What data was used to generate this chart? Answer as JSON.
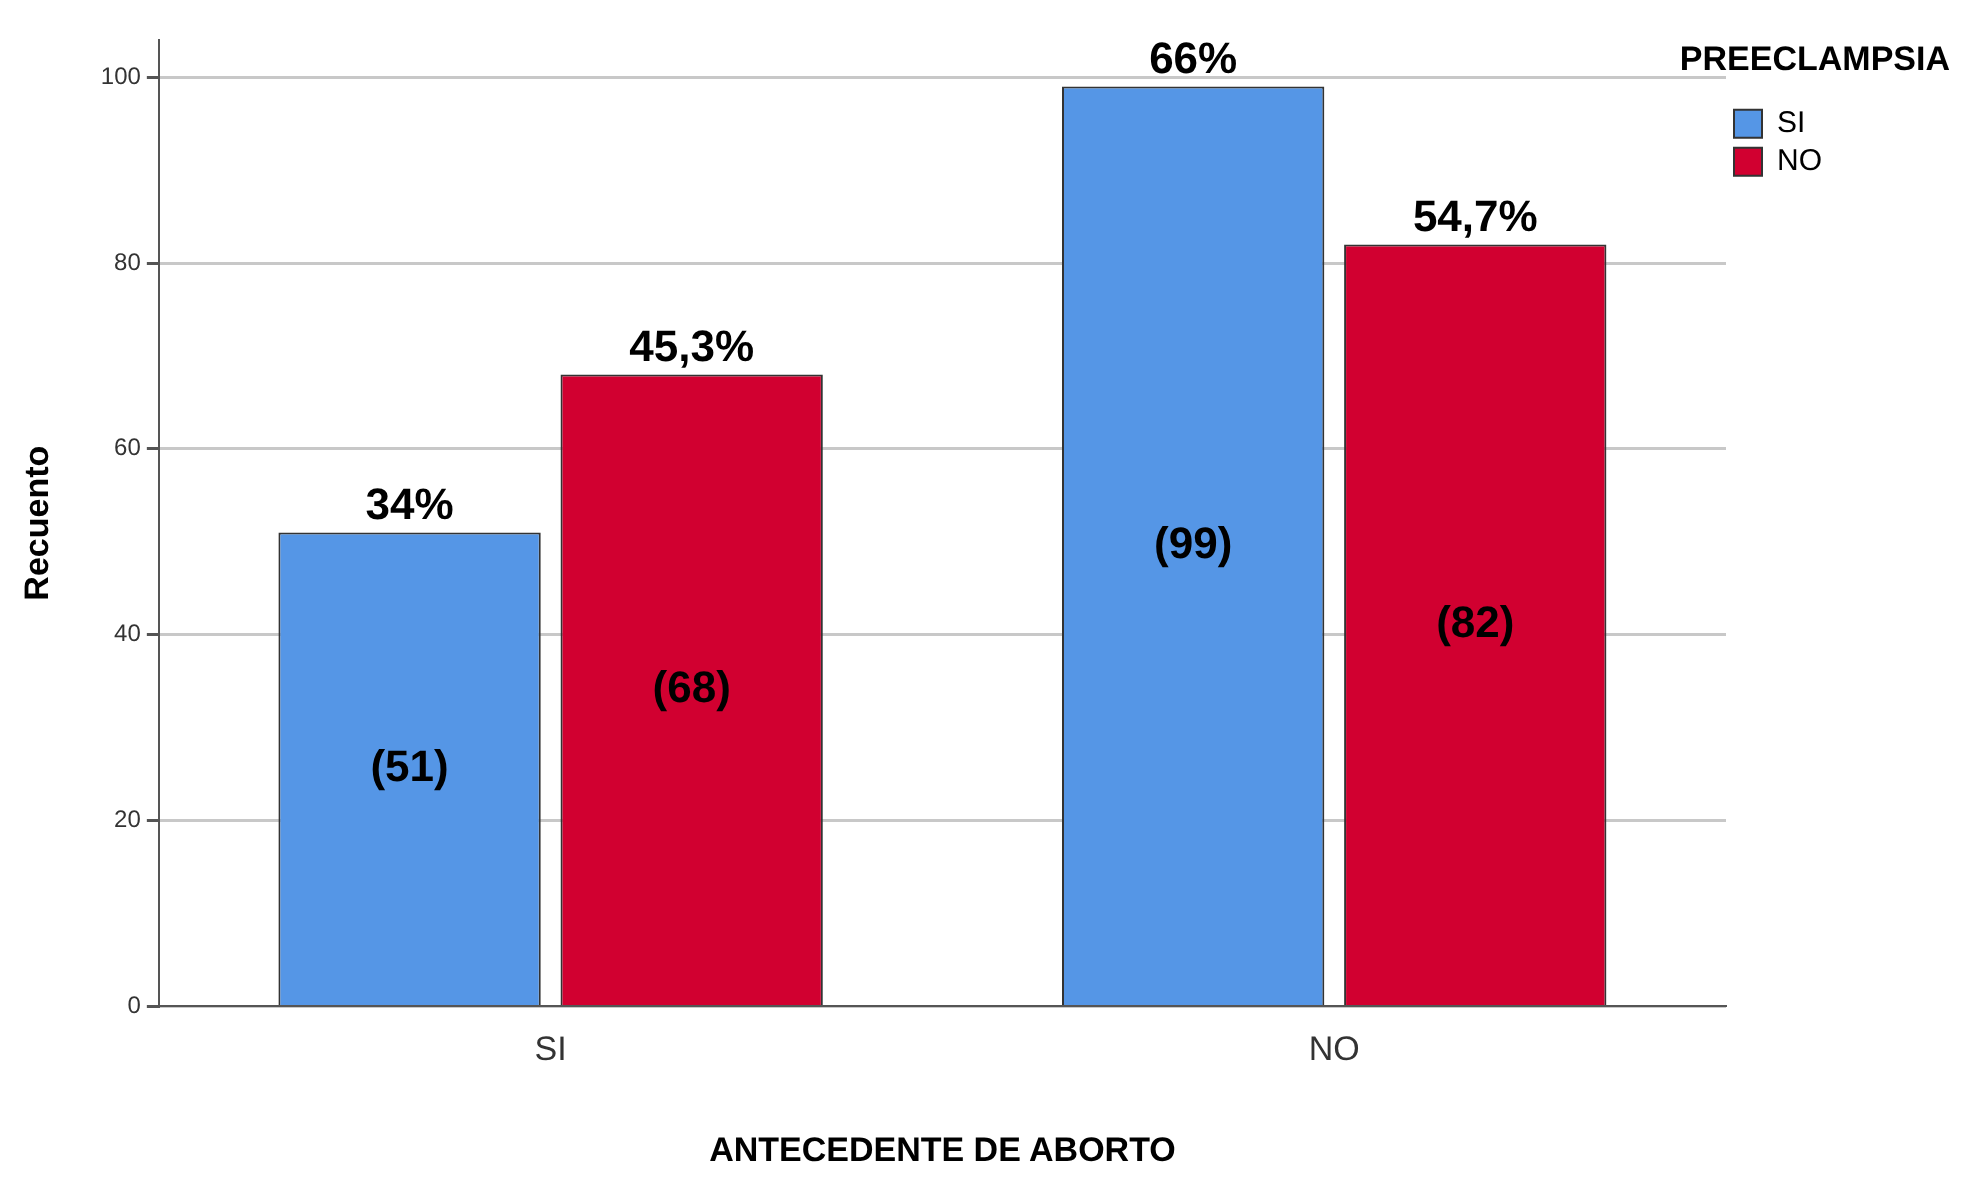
{
  "chart_data": {
    "type": "bar",
    "xlabel": "ANTECEDENTE DE ABORTO",
    "ylabel": "Recuento",
    "legend_title": "PREECLAMPSIA",
    "categories": [
      "SI",
      "NO"
    ],
    "series": [
      {
        "name": "SI",
        "color": "#5596e6",
        "values": [
          51,
          99
        ],
        "value_labels": [
          "(51)",
          "(99)"
        ]
      },
      {
        "name": "NO",
        "color": "#d10030",
        "values": [
          68,
          82
        ],
        "value_labels": [
          "(68)",
          "(82)"
        ]
      }
    ],
    "annotations": [
      "34%",
      "45,3%",
      "66%",
      "54,7%"
    ],
    "ylim": [
      0,
      104
    ],
    "yticks": [
      0,
      20,
      40,
      60,
      80,
      100
    ],
    "grid": "y",
    "legend": "top right"
  }
}
